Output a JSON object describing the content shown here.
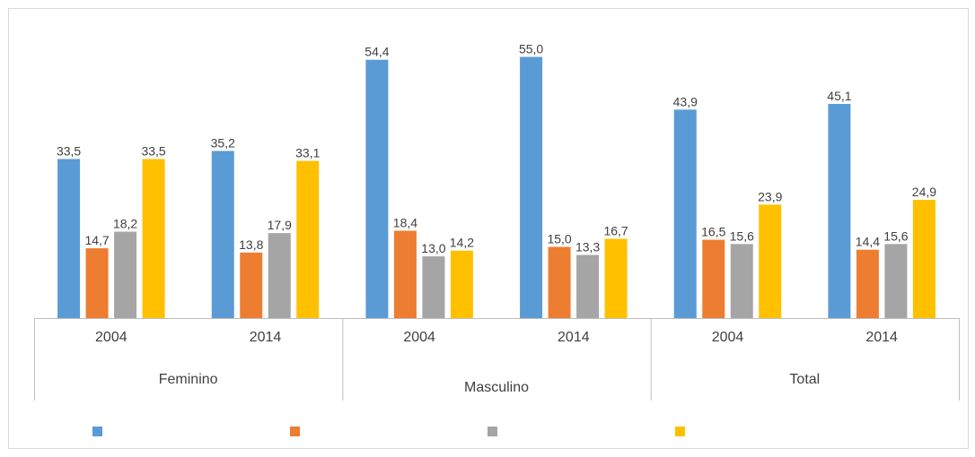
{
  "chart_data": {
    "type": "bar",
    "groups": [
      {
        "label": "Feminino",
        "years": [
          "2004",
          "2014"
        ]
      },
      {
        "label": "Masculino",
        "years": [
          "2004",
          "2014"
        ]
      },
      {
        "label": "Total",
        "years": [
          "2004",
          "2014"
        ]
      }
    ],
    "categories": [
      "Feminino 2004",
      "Feminino 2014",
      "Masculino 2004",
      "Masculino 2014",
      "Total 2004",
      "Total 2014"
    ],
    "series": [
      {
        "color": "#5b9bd5",
        "values": [
          33.5,
          35.2,
          54.4,
          55.0,
          43.9,
          45.1
        ],
        "labels": [
          "33,5",
          "35,2",
          "54,4",
          "55,0",
          "43,9",
          "45,1"
        ]
      },
      {
        "color": "#ed7d31",
        "values": [
          14.7,
          13.8,
          18.4,
          15.0,
          16.5,
          14.4
        ],
        "labels": [
          "14,7",
          "13,8",
          "18,4",
          "15,0",
          "16,5",
          "14,4"
        ]
      },
      {
        "color": "#a5a5a5",
        "values": [
          18.2,
          17.9,
          13.0,
          13.3,
          15.6,
          15.6
        ],
        "labels": [
          "18,2",
          "17,9",
          "13,0",
          "13,3",
          "15,6",
          "15,6"
        ]
      },
      {
        "color": "#ffc000",
        "values": [
          33.5,
          33.1,
          14.2,
          16.7,
          23.9,
          24.9
        ],
        "labels": [
          "33,5",
          "33,1",
          "14,2",
          "16,7",
          "23,9",
          "24,9"
        ]
      }
    ],
    "ylim": [
      0,
      62
    ],
    "grid": false,
    "legend": "bottom",
    "data_labels": true
  }
}
